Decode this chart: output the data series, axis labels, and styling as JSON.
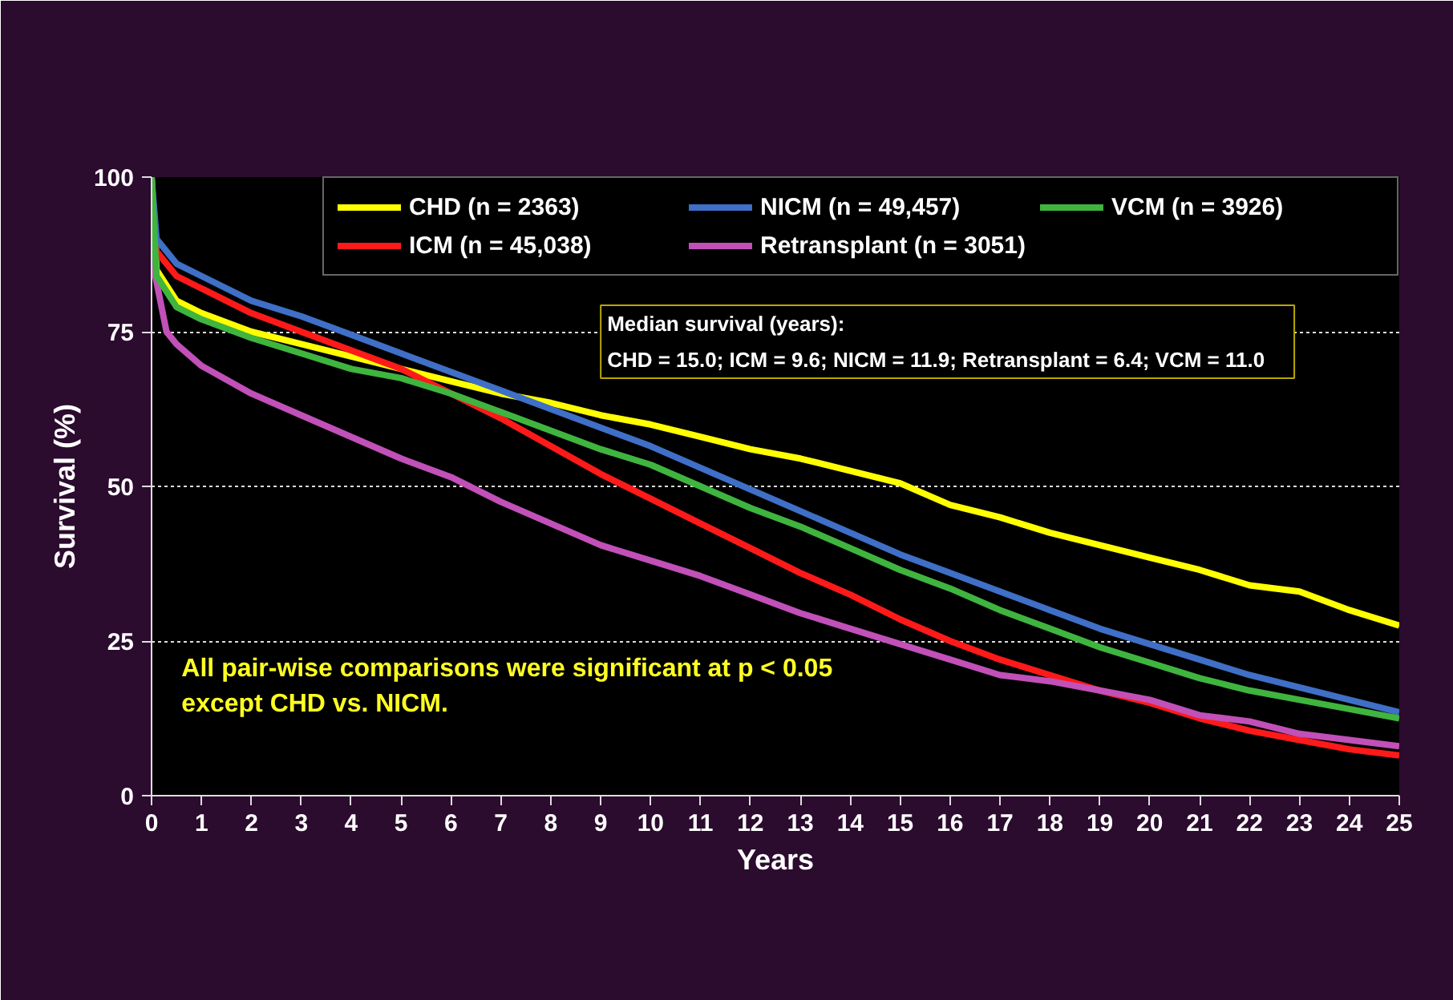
{
  "chart_data": {
    "type": "line",
    "xlabel": "Years",
    "ylabel": "Survival (%)",
    "xlim": [
      0,
      25
    ],
    "ylim": [
      0,
      100
    ],
    "xticks": [
      0,
      1,
      2,
      3,
      4,
      5,
      6,
      7,
      8,
      9,
      10,
      11,
      12,
      13,
      14,
      15,
      16,
      17,
      18,
      19,
      20,
      21,
      22,
      23,
      24,
      25
    ],
    "yticks": [
      0,
      25,
      50,
      75,
      100
    ],
    "grid": "y",
    "legend": "top",
    "line_style": "solid",
    "annotations": [
      "Median survival (years):\nCHD = 15.0;  ICM = 9.6;  NICM = 11.9;  Retransplant = 6.4;  VCM = 11.0",
      "All pair-wise comparisons were significant at p < 0.05\nexcept CHD vs. NICM."
    ],
    "series": [
      {
        "name": "CHD (n = 2363)",
        "color": "#ffff00",
        "x": [
          0,
          0.1,
          0.5,
          1,
          2,
          3,
          4,
          5,
          6,
          7,
          8,
          9,
          10,
          11,
          12,
          13,
          14,
          15,
          16,
          17,
          18,
          19,
          20,
          21,
          22,
          23,
          24,
          25
        ],
        "values": [
          100,
          85,
          80,
          78,
          75,
          73,
          71,
          69,
          67,
          65,
          63.5,
          61.5,
          60,
          58,
          56,
          54.5,
          52.5,
          50.5,
          47,
          45,
          42.5,
          40.5,
          38.5,
          36.5,
          34,
          33,
          30,
          27.5
        ]
      },
      {
        "name": "ICM (n = 45,038)",
        "color": "#ff1a1a",
        "x": [
          0,
          0.1,
          0.5,
          1,
          2,
          3,
          4,
          5,
          6,
          7,
          8,
          9,
          10,
          11,
          12,
          13,
          14,
          15,
          16,
          17,
          18,
          19,
          20,
          21,
          22,
          23,
          24,
          25
        ],
        "values": [
          100,
          88,
          84,
          82,
          78,
          75,
          72,
          69,
          65,
          61,
          56.5,
          52,
          48,
          44,
          40,
          36,
          32.5,
          28.5,
          25,
          22,
          19.5,
          17,
          15,
          12.5,
          10.5,
          9,
          7.5,
          6.5
        ]
      },
      {
        "name": "NICM (n = 49,457)",
        "color": "#3f6fc6",
        "x": [
          0,
          0.1,
          0.5,
          1,
          2,
          3,
          4,
          5,
          6,
          7,
          8,
          9,
          10,
          11,
          12,
          13,
          14,
          15,
          16,
          17,
          18,
          19,
          20,
          21,
          22,
          23,
          24,
          25
        ],
        "values": [
          100,
          90,
          86,
          84,
          80,
          77.5,
          74.5,
          71.5,
          68.5,
          65.5,
          62.5,
          59.5,
          56.5,
          53,
          49.5,
          46,
          42.5,
          39,
          36,
          33,
          30,
          27,
          24.5,
          22,
          19.5,
          17.5,
          15.5,
          13.5
        ]
      },
      {
        "name": "Retransplant (n = 3051)",
        "color": "#c150b8",
        "x": [
          0,
          0.05,
          0.3,
          0.5,
          1,
          2,
          3,
          4,
          5,
          6,
          7,
          8,
          9,
          10,
          11,
          12,
          13,
          14,
          15,
          16,
          17,
          18,
          19,
          20,
          21,
          22,
          23,
          24,
          25
        ],
        "values": [
          100,
          85,
          75,
          73,
          69.5,
          65,
          61.5,
          58,
          54.5,
          51.5,
          47.5,
          44,
          40.5,
          38,
          35.5,
          32.5,
          29.5,
          27,
          24.5,
          22,
          19.5,
          18.5,
          17,
          15.5,
          13,
          12,
          10,
          9,
          8
        ]
      },
      {
        "name": "VCM (n = 3926)",
        "color": "#3fb43f",
        "x": [
          0,
          0.1,
          0.5,
          1,
          2,
          3,
          4,
          5,
          6,
          7,
          8,
          9,
          10,
          11,
          12,
          13,
          14,
          15,
          16,
          17,
          18,
          19,
          20,
          21,
          22,
          23,
          24,
          25
        ],
        "values": [
          100,
          84,
          79,
          77,
          74,
          71.5,
          69,
          67.5,
          65,
          62,
          59,
          56,
          53.5,
          50,
          46.5,
          43.5,
          40,
          36.5,
          33.5,
          30,
          27,
          24,
          21.5,
          19,
          17,
          15.5,
          14,
          12.5
        ]
      }
    ]
  }
}
